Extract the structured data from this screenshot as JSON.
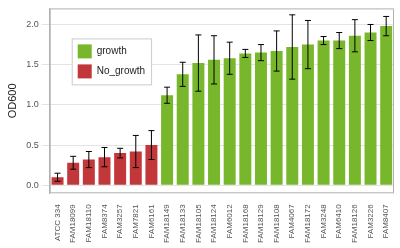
{
  "chart_data": {
    "type": "bar",
    "y_label": "OD600",
    "categories": [
      "ATCC 334",
      "FAM18099",
      "FAM18110",
      "FAM8374",
      "FAM3257",
      "FAM7821",
      "FAM6161",
      "FAM18149",
      "FAM18133",
      "FAM18105",
      "FAM18124",
      "FAM6012",
      "FAM18168",
      "FAM18129",
      "FAM18108",
      "FAM4067",
      "FAM18172",
      "FAM3248",
      "FAM6410",
      "FAM18126",
      "FAM3226",
      "FAM8407"
    ],
    "series": [
      {
        "name": "growth",
        "color": "#78b72b",
        "values": [
          null,
          null,
          null,
          null,
          null,
          null,
          null,
          1.12,
          1.38,
          1.52,
          1.56,
          1.58,
          1.64,
          1.65,
          1.67,
          1.72,
          1.75,
          1.8,
          1.8,
          1.86,
          1.9,
          1.98
        ],
        "errors": [
          null,
          null,
          null,
          null,
          null,
          null,
          null,
          0.1,
          0.15,
          0.35,
          0.3,
          0.2,
          0.05,
          0.1,
          0.25,
          0.4,
          0.3,
          0.05,
          0.1,
          0.2,
          0.1,
          0.12
        ]
      },
      {
        "name": "No_growth",
        "color": "#c1373a",
        "values": [
          0.1,
          0.28,
          0.32,
          0.35,
          0.4,
          0.42,
          0.5,
          null,
          null,
          null,
          null,
          null,
          null,
          null,
          null,
          null,
          null,
          null,
          null,
          null,
          null,
          null
        ],
        "errors": [
          0.05,
          0.08,
          0.1,
          0.12,
          0.06,
          0.2,
          0.18,
          null,
          null,
          null,
          null,
          null,
          null,
          null,
          null,
          null,
          null,
          null,
          null,
          null,
          null,
          null
        ]
      }
    ],
    "ylim": [
      -0.1,
      2.2
    ],
    "yticks": [
      {
        "value": 0,
        "label": "0.0"
      },
      0.5,
      {
        "value": 1,
        "label": "1.0"
      },
      1.5,
      {
        "value": 2,
        "label": "2.0"
      }
    ],
    "grid": true,
    "legend": "top-left"
  }
}
